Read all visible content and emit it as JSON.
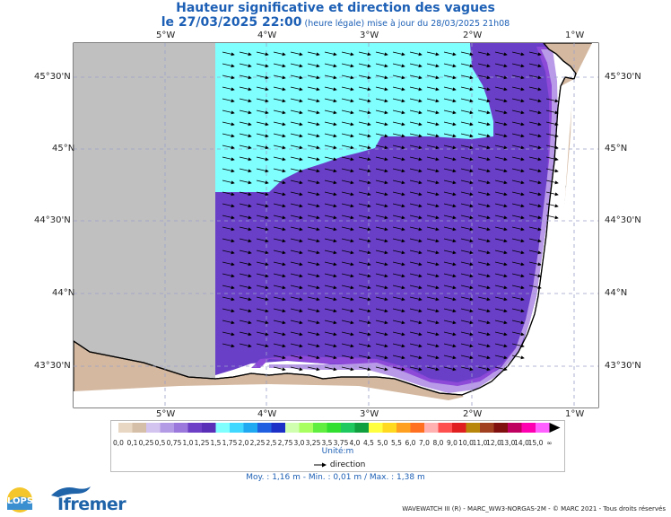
{
  "header": {
    "title": "Hauteur significative et direction des vagues",
    "date_prefix": "le ",
    "date": "27/03/2025 22:00",
    "subtitle": " (heure légale) mise à jour du 28/03/2025 21h08"
  },
  "map": {
    "lon_ticks": [
      "5°W",
      "4°W",
      "3°W",
      "2°W",
      "1°W"
    ],
    "lat_ticks": [
      "45°30'N",
      "45°N",
      "44°30'N",
      "44°N",
      "43°30'N"
    ],
    "colors": {
      "land": "#d4b8a0",
      "no_data": "#c0c0c0",
      "cyan": "#80ffff",
      "violet": "#6a3fc8",
      "purple": "#8d49d8",
      "lavender": "#b89ae8",
      "light_lavender": "#d9c9f5"
    }
  },
  "legend": {
    "labels": [
      "0,0",
      "0,1",
      "0,25",
      "0,5",
      "0,75",
      "1,0",
      "1,25",
      "1,5",
      "1,75",
      "2,0",
      "2,25",
      "2,5",
      "2,75",
      "3,0",
      "3,25",
      "3,5",
      "3,75",
      "4,0",
      "4,5",
      "5,0",
      "5,5",
      "6,0",
      "7,0",
      "8,0",
      "9,0",
      "10,0",
      "11,0",
      "12,0",
      "13,0",
      "14,0",
      "15,0",
      "∞"
    ],
    "colors": [
      "#e8d7c2",
      "#d6bfa8",
      "#d3c3ef",
      "#b49be6",
      "#9a78dc",
      "#6d3fc6",
      "#5a2fb8",
      "#80ffff",
      "#40d8ff",
      "#20a8f0",
      "#2060e0",
      "#1c30c8",
      "#d0ffb0",
      "#a8ff60",
      "#60ef40",
      "#30df30",
      "#20c860",
      "#10a040",
      "#ffff40",
      "#ffd820",
      "#ffa020",
      "#ff7020",
      "#ffb0b0",
      "#ff5050",
      "#e02020",
      "#b8860b",
      "#a04020",
      "#801010",
      "#c00060",
      "#ff00b0",
      "#ff60ff"
    ],
    "unit": "Unité:m",
    "direction_label": "direction"
  },
  "stats": {
    "text": "Moy. : 1,16 m   -   Min. : 0,01 m / Max. : 1,38 m"
  },
  "footer": {
    "text": "WAVEWATCH III (R) - MARC_WW3-NORGAS-2M - © MARC 2021 - Tous droits réservés",
    "lops": "LOPS",
    "ifremer": "Ifremer"
  }
}
